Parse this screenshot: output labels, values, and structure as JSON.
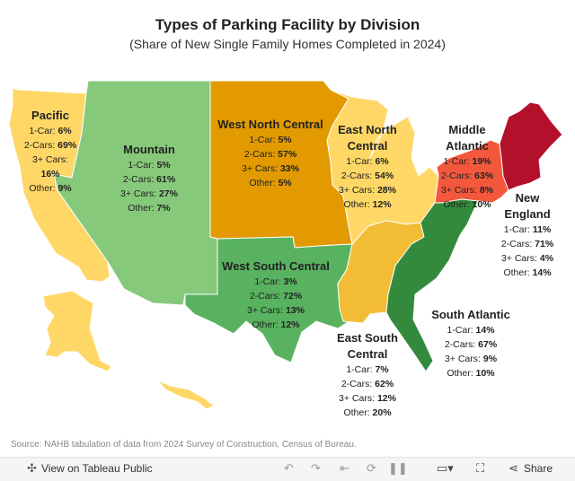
{
  "title": "Types of Parking Facility by Division",
  "subtitle": "(Share of New Single Family Homes Completed in 2024)",
  "colors": {
    "pacific": "#fed766",
    "mountain": "#86c97a",
    "west_north_central": "#e29a00",
    "east_north_central": "#fed766",
    "middle_atlantic": "#f4583c",
    "new_england": "#b3102b",
    "west_south_central": "#58b25f",
    "east_south_central": "#f2bd34",
    "south_atlantic": "#338a3c"
  },
  "divisions": [
    {
      "id": "pacific",
      "name": "Pacific",
      "car1": "6%",
      "car2": "69%",
      "car3": "16%",
      "other": "9%"
    },
    {
      "id": "mountain",
      "name": "Mountain",
      "car1": "5%",
      "car2": "61%",
      "car3": "27%",
      "other": "7%"
    },
    {
      "id": "west_north_central",
      "name": "West North Central",
      "car1": "5%",
      "car2": "57%",
      "car3": "33%",
      "other": "5%"
    },
    {
      "id": "east_north_central",
      "name": "East North Central",
      "car1": "6%",
      "car2": "54%",
      "car3": "28%",
      "other": "12%"
    },
    {
      "id": "middle_atlantic",
      "name": "Middle Atlantic",
      "car1": "19%",
      "car2": "63%",
      "car3": "8%",
      "other": "10%"
    },
    {
      "id": "new_england",
      "name": "New England",
      "car1": "11%",
      "car2": "71%",
      "car3": "4%",
      "other": "14%"
    },
    {
      "id": "west_south_central",
      "name": "West South Central",
      "car1": "3%",
      "car2": "72%",
      "car3": "13%",
      "other": "12%"
    },
    {
      "id": "east_south_central",
      "name": "East South Central",
      "car1": "7%",
      "car2": "62%",
      "car3": "12%",
      "other": "20%"
    },
    {
      "id": "south_atlantic",
      "name": "South Atlantic",
      "car1": "14%",
      "car2": "67%",
      "car3": "9%",
      "other": "10%"
    }
  ],
  "row_labels": {
    "car1": "1-Car:",
    "car2": "2-Cars:",
    "car3": "3+ Cars:",
    "other": "Other:"
  },
  "source": "Source: NAHB tabulation of data from 2024 Survey of Construction, Census of Bureau.",
  "toolbar": {
    "view_label": "View on Tableau Public",
    "share_label": "Share",
    "icons": [
      "tableau-logo-icon",
      "undo-icon",
      "redo-icon",
      "revert-icon",
      "refresh-icon",
      "pause-icon",
      "comment-icon",
      "fullscreen-icon",
      "share-icon"
    ]
  }
}
